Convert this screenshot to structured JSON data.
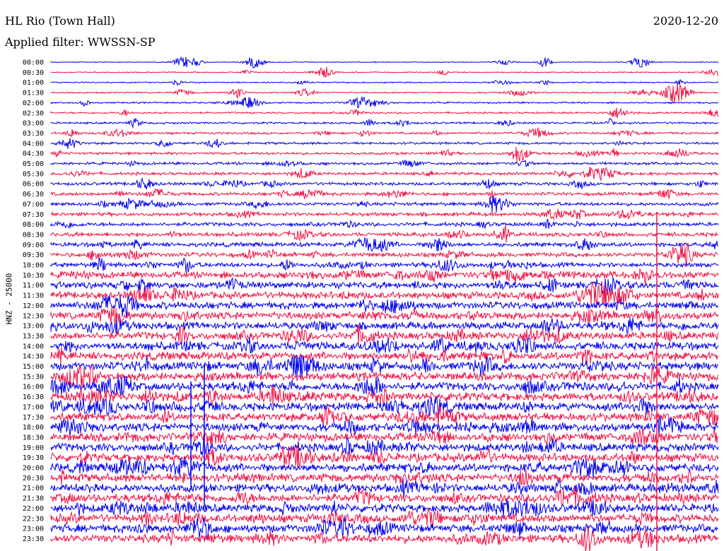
{
  "header": {
    "station": "HL Rio (Town Hall)",
    "date": "2020-12-20",
    "filter": "Applied filter: WWSSN-SP"
  },
  "chart_data": {
    "type": "line",
    "title": "HL Rio (Town Hall)",
    "subtitle": "Applied filter: WWSSN-SP",
    "ylabel": "HNZ - 25000",
    "xlabel": "",
    "rows": [
      "00:00",
      "00:30",
      "01:00",
      "01:30",
      "02:00",
      "02:30",
      "03:00",
      "03:30",
      "04:00",
      "04:30",
      "05:00",
      "05:30",
      "06:00",
      "06:30",
      "07:00",
      "07:30",
      "08:00",
      "08:30",
      "09:00",
      "09:30",
      "10:00",
      "10:30",
      "11:00",
      "11:30",
      "12:00",
      "12:30",
      "13:00",
      "13:30",
      "14:00",
      "14:30",
      "15:00",
      "15:30",
      "16:00",
      "16:30",
      "17:00",
      "17:30",
      "18:00",
      "18:30",
      "19:00",
      "19:30",
      "20:00",
      "20:30",
      "21:00",
      "21:30",
      "22:00",
      "22:30",
      "23:00",
      "23:30"
    ],
    "series_colors": [
      "#0000ee",
      "#ee1144"
    ],
    "legend": "none",
    "grid": false
  }
}
